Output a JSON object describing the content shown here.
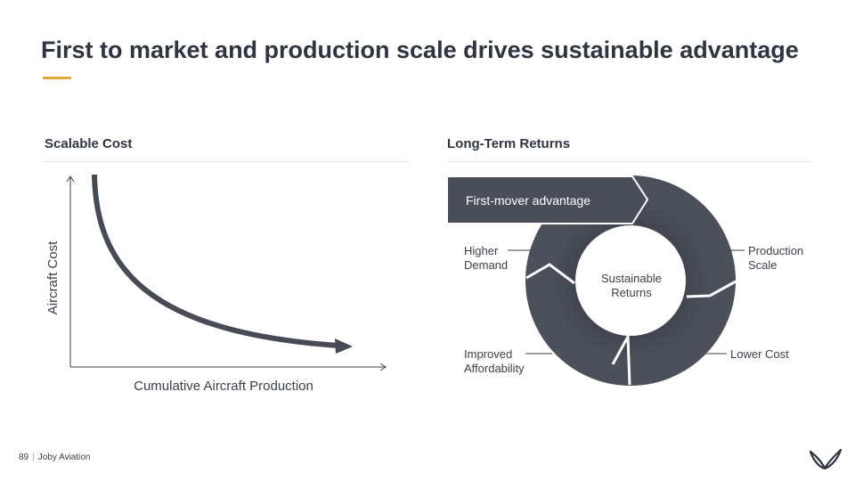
{
  "title": "First to market and production scale drives sustainable advantage",
  "left_section": {
    "heading": "Scalable Cost",
    "y_axis_label": "Aircraft Cost",
    "x_axis_label": "Cumulative Aircraft Production"
  },
  "right_section": {
    "heading": "Long-Term Returns",
    "banner": "First-mover advantage",
    "center_line1": "Sustainable",
    "center_line2": "Returns",
    "higher_demand_line1": "Higher",
    "higher_demand_line2": "Demand",
    "production_scale_line1": "Production",
    "production_scale_line2": "Scale",
    "affordability_line1": "Improved",
    "affordability_line2": "Affordability",
    "lower_cost": "Lower Cost"
  },
  "footer": {
    "page_number": "89",
    "separator": "|",
    "company": "Joby Aviation"
  },
  "colors": {
    "accent": "#e8a838",
    "dark": "#4a4e58",
    "text": "#2f3440"
  }
}
